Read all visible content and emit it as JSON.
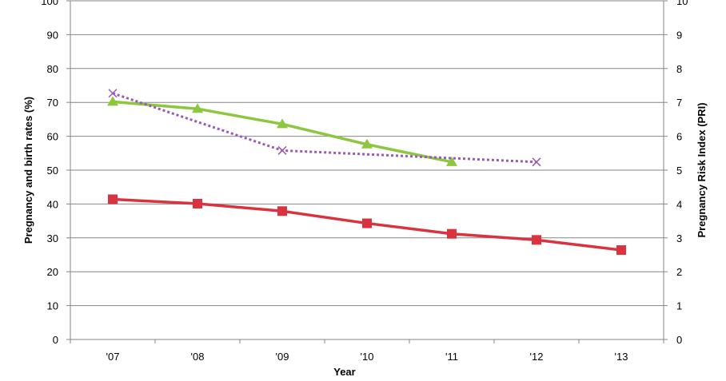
{
  "chart_data": {
    "type": "line",
    "title": "",
    "xlabel": "Year",
    "ylabel": "Pregnancy and birth rates (%)",
    "y2label": "Pregnancy Risk Index (PRI)",
    "categories": [
      "'07",
      "'08",
      "'09",
      "'10",
      "'11",
      "'12",
      "'13"
    ],
    "ylim": [
      0,
      100
    ],
    "y2lim": [
      0,
      10
    ],
    "yticks": [
      "0",
      "10",
      "20",
      "30",
      "40",
      "50",
      "60",
      "70",
      "80",
      "90",
      "100"
    ],
    "y2ticks": [
      "0",
      "1",
      "2",
      "3",
      "4",
      "5",
      "6",
      "7",
      "8",
      "9",
      "10"
    ],
    "grid": true,
    "legend": "none",
    "series": [
      {
        "axis": "left",
        "marker": "triangle",
        "line_style": "solid",
        "color": "#8dc63f",
        "values": [
          70.2,
          68.1,
          63.6,
          57.6,
          52.4,
          null,
          null
        ]
      },
      {
        "axis": "right",
        "marker": "x",
        "line_style": "dotted",
        "color": "#9b59b6",
        "values": [
          7.27,
          null,
          5.58,
          null,
          null,
          5.24,
          null
        ]
      },
      {
        "axis": "left",
        "marker": "square",
        "line_style": "solid",
        "color": "#d9333f",
        "values": [
          41.4,
          40.1,
          37.9,
          34.3,
          31.2,
          29.4,
          26.4
        ]
      }
    ]
  }
}
